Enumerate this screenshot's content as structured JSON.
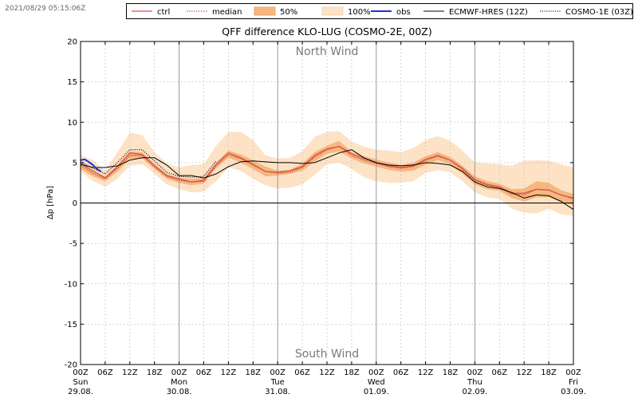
{
  "timestamp": "2021/08/29 05:15:06Z",
  "colors": {
    "ctrl": "#d9534f",
    "median": "#c0392b",
    "band50": "#f6b77e",
    "band100": "#fde2c6",
    "obs": "#1f2fd6",
    "ecmwf": "#000000",
    "cosmo1": "#000000",
    "grid": "#bbbbbb",
    "day_line": "#999999"
  },
  "legend": [
    {
      "key": "ctrl",
      "label": "ctrl"
    },
    {
      "key": "median",
      "label": "median"
    },
    {
      "key": "band50",
      "label": "50%"
    },
    {
      "key": "band100",
      "label": "100%"
    },
    {
      "key": "obs",
      "label": "obs"
    },
    {
      "key": "ecmwf",
      "label": "ECMWF-HRES (12Z)"
    },
    {
      "key": "cosmo1",
      "label": "COSMO-1E (03Z)"
    }
  ],
  "chart_data": {
    "type": "line",
    "title": "QFF difference KLO-LUG (COSMO-2E, 00Z)",
    "ylabel": "Δp [hPa]",
    "xlabel": "",
    "xlim": [
      0,
      120
    ],
    "ylim": [
      -20,
      20
    ],
    "grid": true,
    "legend_position": "top",
    "yticks": [
      -20,
      -15,
      -10,
      -5,
      0,
      5,
      10,
      15,
      20
    ],
    "annotations": {
      "top": "North Wind",
      "bottom": "South Wind"
    },
    "xticks": [
      {
        "h": 0,
        "time": "00Z",
        "day": "Sun",
        "date": "29.08."
      },
      {
        "h": 6,
        "time": "06Z"
      },
      {
        "h": 12,
        "time": "12Z"
      },
      {
        "h": 18,
        "time": "18Z"
      },
      {
        "h": 24,
        "time": "00Z",
        "day": "Mon",
        "date": "30.08."
      },
      {
        "h": 30,
        "time": "06Z"
      },
      {
        "h": 36,
        "time": "12Z"
      },
      {
        "h": 42,
        "time": "18Z"
      },
      {
        "h": 48,
        "time": "00Z",
        "day": "Tue",
        "date": "31.08."
      },
      {
        "h": 54,
        "time": "06Z"
      },
      {
        "h": 60,
        "time": "12Z"
      },
      {
        "h": 66,
        "time": "18Z"
      },
      {
        "h": 72,
        "time": "00Z",
        "day": "Wed",
        "date": "01.09."
      },
      {
        "h": 78,
        "time": "06Z"
      },
      {
        "h": 84,
        "time": "12Z"
      },
      {
        "h": 90,
        "time": "18Z"
      },
      {
        "h": 96,
        "time": "00Z",
        "day": "Thu",
        "date": "02.09."
      },
      {
        "h": 102,
        "time": "06Z"
      },
      {
        "h": 108,
        "time": "12Z"
      },
      {
        "h": 114,
        "time": "18Z"
      },
      {
        "h": 120,
        "time": "00Z",
        "day": "Fri",
        "date": "03.09."
      }
    ],
    "x": [
      0,
      3,
      6,
      9,
      12,
      15,
      18,
      21,
      24,
      27,
      30,
      33,
      36,
      39,
      42,
      45,
      48,
      51,
      54,
      57,
      60,
      63,
      66,
      69,
      72,
      75,
      78,
      81,
      84,
      87,
      90,
      93,
      96,
      99,
      102,
      105,
      108,
      111,
      114,
      117,
      120
    ],
    "band100_lo": [
      3.9,
      2.7,
      2.0,
      3.0,
      4.6,
      4.8,
      3.6,
      2.3,
      1.7,
      1.3,
      1.4,
      2.7,
      4.4,
      4.0,
      3.0,
      2.2,
      1.8,
      1.9,
      2.3,
      3.5,
      4.8,
      5.0,
      4.2,
      3.2,
      2.7,
      2.5,
      2.5,
      2.7,
      3.7,
      4.1,
      3.8,
      2.7,
      1.3,
      0.7,
      0.5,
      -0.7,
      -1.2,
      -1.3,
      -0.7,
      -1.4,
      -1.6
    ],
    "band50_lo": [
      4.2,
      3.3,
      2.7,
      3.9,
      5.4,
      5.5,
      4.2,
      3.0,
      2.5,
      2.2,
      2.4,
      4.3,
      5.6,
      5.0,
      4.2,
      3.3,
      3.4,
      3.6,
      4.0,
      5.1,
      6.1,
      6.4,
      5.5,
      4.9,
      4.5,
      4.1,
      3.9,
      4.0,
      4.7,
      5.3,
      4.8,
      3.6,
      2.3,
      1.7,
      1.5,
      0.6,
      0.2,
      0.7,
      0.7,
      0.2,
      -0.3
    ],
    "band50_hi": [
      5.1,
      4.0,
      3.3,
      4.7,
      6.4,
      6.3,
      4.9,
      3.6,
      3.1,
      3.0,
      3.1,
      5.0,
      6.5,
      6.0,
      5.3,
      4.5,
      4.0,
      4.1,
      4.9,
      6.3,
      7.1,
      7.7,
      6.3,
      5.8,
      5.4,
      5.0,
      4.7,
      5.0,
      5.8,
      6.3,
      5.7,
      4.6,
      3.3,
      2.7,
      2.4,
      1.7,
      1.8,
      2.7,
      2.5,
      1.6,
      1.1
    ],
    "band100_hi": [
      5.9,
      5.3,
      4.0,
      6.3,
      8.7,
      8.4,
      6.3,
      4.9,
      4.4,
      4.7,
      4.8,
      7.1,
      8.8,
      8.8,
      7.8,
      5.9,
      5.5,
      5.6,
      6.4,
      8.2,
      8.8,
      8.9,
      7.6,
      7.0,
      6.6,
      6.5,
      6.3,
      6.8,
      7.8,
      8.3,
      7.7,
      6.5,
      5.0,
      4.9,
      4.8,
      4.6,
      5.2,
      5.3,
      5.2,
      4.8,
      4.4
    ],
    "series": [
      {
        "name": "ctrl",
        "key": "ctrl",
        "y": [
          4.9,
          4.0,
          3.1,
          4.5,
          6.2,
          6.0,
          4.6,
          3.4,
          3.0,
          2.6,
          2.8,
          4.8,
          6.2,
          5.6,
          4.8,
          3.9,
          3.8,
          4.0,
          4.5,
          5.9,
          6.7,
          7.0,
          6.1,
          5.5,
          5.0,
          4.6,
          4.4,
          4.6,
          5.4,
          5.9,
          5.3,
          4.3,
          2.9,
          2.3,
          2.0,
          1.2,
          1.2,
          1.7,
          1.6,
          1.0,
          0.6
        ]
      },
      {
        "name": "median",
        "key": "median",
        "y": [
          4.7,
          3.7,
          3.0,
          4.3,
          5.9,
          5.9,
          4.5,
          3.3,
          2.8,
          2.6,
          2.7,
          4.6,
          6.0,
          5.5,
          4.7,
          3.9,
          3.7,
          3.8,
          4.4,
          5.7,
          6.6,
          7.0,
          5.9,
          5.3,
          4.9,
          4.5,
          4.3,
          4.5,
          5.3,
          5.8,
          5.3,
          4.1,
          2.8,
          2.2,
          1.9,
          1.1,
          1.0,
          1.7,
          1.6,
          1.0,
          0.5
        ]
      },
      {
        "name": "obs",
        "key": "obs",
        "x": [
          0,
          1,
          2,
          3,
          4,
          5
        ],
        "y": [
          5.3,
          5.4,
          5.1,
          4.7,
          4.2,
          3.9
        ]
      },
      {
        "name": "ECMWF-HRES (12Z)",
        "key": "ecmwf",
        "y": [
          4.8,
          4.4,
          4.4,
          4.6,
          5.3,
          5.6,
          5.6,
          4.7,
          3.4,
          3.4,
          3.1,
          3.6,
          4.5,
          5.1,
          5.2,
          5.1,
          5.0,
          5.0,
          4.9,
          5.0,
          5.6,
          6.2,
          6.6,
          5.6,
          5.0,
          4.7,
          4.6,
          4.7,
          5.0,
          4.9,
          4.7,
          3.9,
          2.6,
          2.0,
          1.8,
          1.3,
          0.6,
          1.0,
          0.9,
          0.2,
          -0.8
        ]
      },
      {
        "name": "COSMO-1E (03Z)",
        "key": "cosmo1",
        "x": [
          0,
          3,
          6,
          9,
          12,
          15,
          18,
          21,
          24,
          27,
          30,
          33
        ],
        "y": [
          5.1,
          4.3,
          3.6,
          5.0,
          6.6,
          6.6,
          5.2,
          3.8,
          3.3,
          3.2,
          3.3,
          5.2
        ]
      }
    ]
  }
}
